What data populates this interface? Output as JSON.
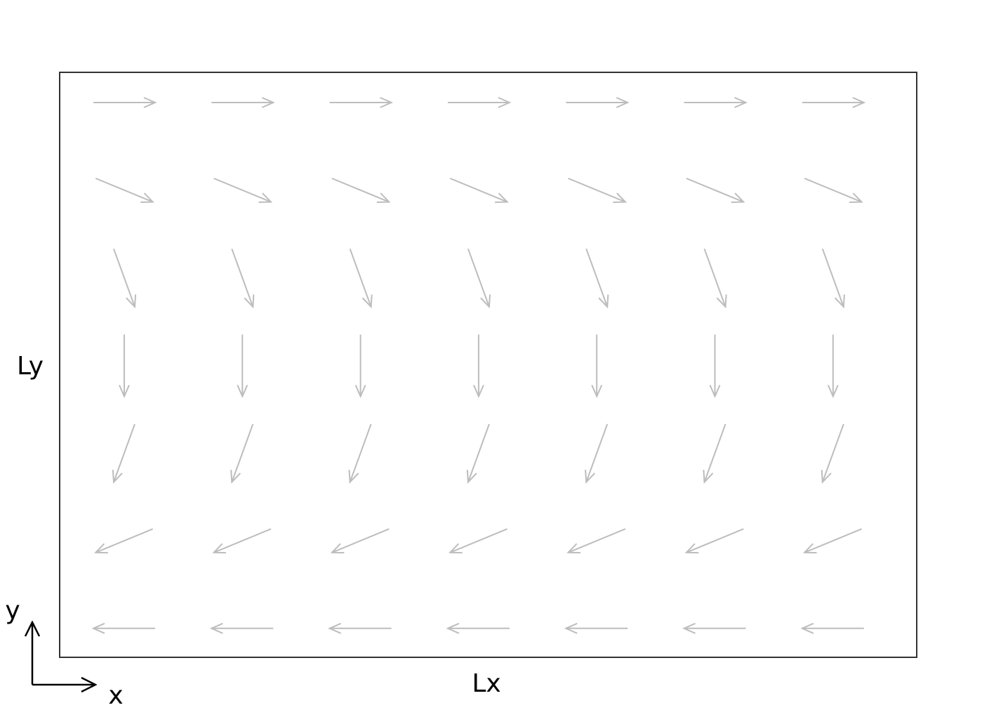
{
  "labels": {
    "width": "Lx",
    "height": "Ly",
    "axis_x": "x",
    "axis_y": "y"
  },
  "field": {
    "columns": 7,
    "rows": [
      {
        "angle_deg": 0
      },
      {
        "angle_deg": -22.5
      },
      {
        "angle_deg": -70
      },
      {
        "angle_deg": -90
      },
      {
        "angle_deg": -110
      },
      {
        "angle_deg": -157.5
      },
      {
        "angle_deg": 180
      }
    ]
  },
  "colors": {
    "frame": "#333333",
    "arrows": "#bdbdbd",
    "axes": "#000000",
    "text": "#000000"
  }
}
